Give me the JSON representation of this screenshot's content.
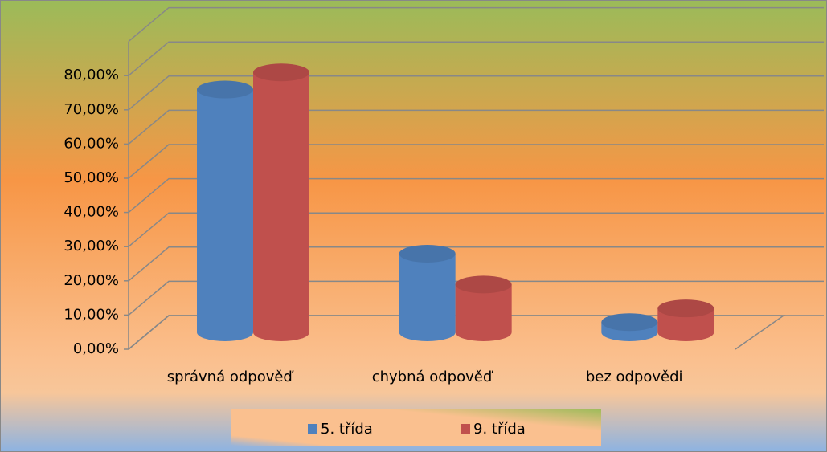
{
  "chart_data": {
    "type": "bar3d",
    "categories": [
      "správná odpověď",
      "chybná odpověď",
      "bez odpovědi"
    ],
    "series": [
      {
        "name": "5. třída",
        "color": "#4f81bd",
        "values": [
          71,
          23,
          3
        ]
      },
      {
        "name": "9. třída",
        "color": "#c0504d",
        "values": [
          76,
          14,
          7
        ]
      }
    ],
    "ylim": [
      0,
      90
    ],
    "yticks": [
      {
        "value": 0,
        "label": "0,00%"
      },
      {
        "value": 10,
        "label": "10,00%"
      },
      {
        "value": 20,
        "label": "20,00%"
      },
      {
        "value": 30,
        "label": "30,00%"
      },
      {
        "value": 40,
        "label": "40,00%"
      },
      {
        "value": 50,
        "label": "50,00%"
      },
      {
        "value": 60,
        "label": "60,00%"
      },
      {
        "value": 70,
        "label": "70,00%"
      },
      {
        "value": 80,
        "label": "80,00%"
      }
    ],
    "grid": true,
    "legend": "bottom"
  }
}
